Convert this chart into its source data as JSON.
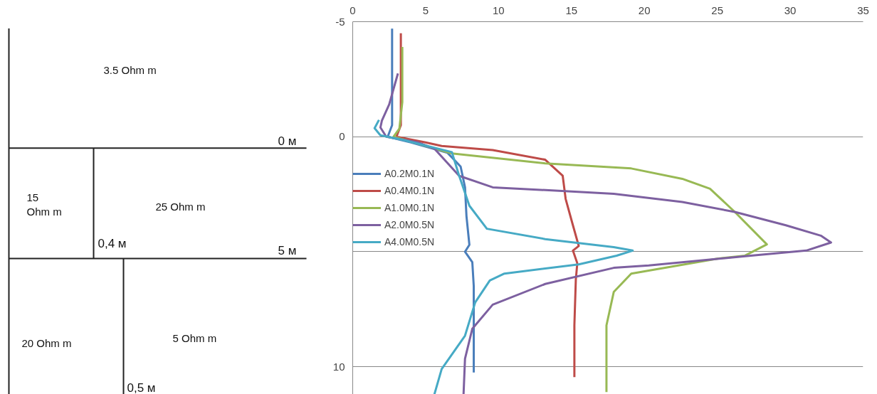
{
  "chart_data": [
    {
      "type": "other",
      "annotations": [
        "3.5 Ohm m",
        "0 м",
        "15\nOhm m",
        "25 Ohm m",
        "0,4 м",
        "5 м",
        "20 Ohm m",
        "5 Ohm m",
        "0,5 м"
      ]
    },
    {
      "type": "line",
      "xlim": [
        0,
        35
      ],
      "xticks": [
        0,
        5,
        10,
        15,
        20,
        25,
        30,
        35
      ],
      "ylim": [
        11.2,
        -5
      ],
      "yticks": [
        -5,
        0,
        {
          "value": 5,
          "label": null
        },
        10
      ],
      "grid": "y",
      "legend": "left",
      "marker": "none",
      "line_style": "solid",
      "series": [
        {
          "name": "A0.2M0.1N",
          "color": "#4a7ebb",
          "x": [
            2.7,
            2.7,
            2.7,
            2.4,
            4.0,
            6.5,
            7.4,
            7.7,
            7.8,
            8.0,
            7.7,
            8.2,
            8.3,
            8.3
          ],
          "values": [
            -4.7,
            -2.0,
            -0.5,
            0.0,
            0.25,
            0.7,
            1.3,
            2.2,
            3.45,
            4.7,
            5.0,
            5.45,
            6.5,
            10.25
          ]
        },
        {
          "name": "A0.4M0.1N",
          "color": "#be4b48",
          "x": [
            3.3,
            3.3,
            3.3,
            3.0,
            5.0,
            6.1,
            9.6,
            13.2,
            14.4,
            14.6,
            15.1,
            15.5,
            15.1,
            15.4,
            15.3,
            15.2,
            15.2
          ],
          "values": [
            -4.5,
            -2.0,
            -0.5,
            0.0,
            0.25,
            0.4,
            0.58,
            1.0,
            1.7,
            2.7,
            3.85,
            4.75,
            4.95,
            5.5,
            6.2,
            8.2,
            10.45
          ]
        },
        {
          "name": "A1.0M0.1N",
          "color": "#98b954",
          "x": [
            3.4,
            3.4,
            3.2,
            2.8,
            4.5,
            6.8,
            13.2,
            19.1,
            22.6,
            24.5,
            26.2,
            28.4,
            26.9,
            25.0,
            19.1,
            17.9,
            17.4,
            17.4
          ],
          "values": [
            -3.9,
            -1.5,
            -0.35,
            0.0,
            0.3,
            0.73,
            1.16,
            1.38,
            1.83,
            2.26,
            3.27,
            4.68,
            5.17,
            5.3,
            5.95,
            6.75,
            8.2,
            11.1
          ]
        },
        {
          "name": "A2.0M0.5N",
          "color": "#7d60a0",
          "x": [
            3.1,
            2.5,
            2.0,
            1.9,
            2.3,
            4.5,
            5.6,
            7.3,
            9.6,
            17.9,
            22.6,
            26.2,
            29.7,
            32.1,
            32.8,
            31.1,
            27.3,
            20.3,
            17.9,
            13.2,
            9.6,
            8.2,
            7.7,
            7.6
          ],
          "values": [
            -2.75,
            -1.4,
            -0.7,
            -0.4,
            0.0,
            0.25,
            0.52,
            1.7,
            2.2,
            2.48,
            2.84,
            3.27,
            3.85,
            4.3,
            4.6,
            4.95,
            5.17,
            5.6,
            5.7,
            6.4,
            7.3,
            8.35,
            9.65,
            11.2
          ]
        },
        {
          "name": "A4.0M0.5N",
          "color": "#46aac5",
          "x": [
            1.8,
            1.5,
            1.9,
            3.5,
            6.8,
            7.3,
            8.0,
            9.2,
            13.2,
            17.9,
            19.2,
            18.1,
            15.5,
            10.4,
            9.4,
            8.4,
            7.7,
            6.1,
            5.6
          ],
          "values": [
            -0.73,
            -0.37,
            -0.06,
            0.15,
            0.67,
            1.7,
            3.0,
            4.0,
            4.45,
            4.8,
            4.95,
            5.17,
            5.55,
            5.95,
            6.25,
            7.2,
            8.65,
            10.1,
            11.2
          ]
        }
      ]
    }
  ]
}
